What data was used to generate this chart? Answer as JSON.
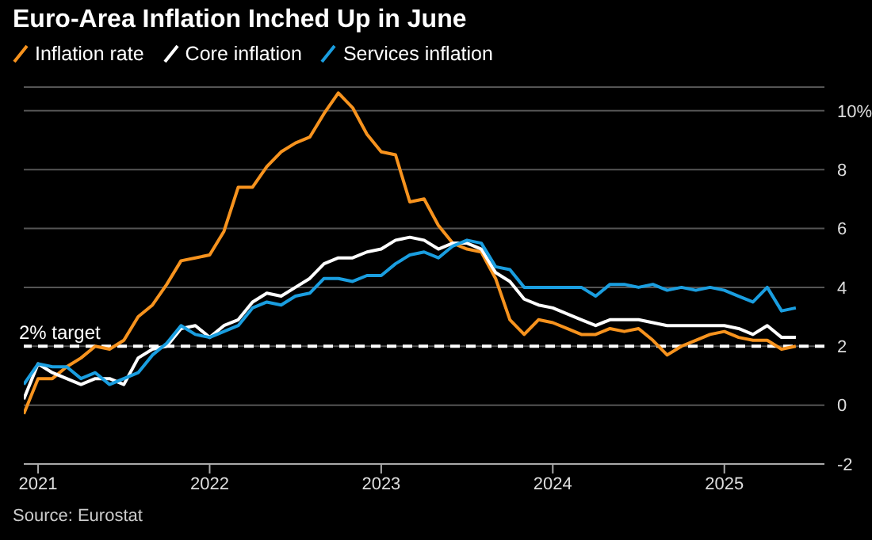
{
  "chart_data": {
    "type": "line",
    "title": "Euro-Area Inflation Inched Up in June",
    "x": [
      "2020-12",
      "2021-01",
      "2021-02",
      "2021-03",
      "2021-04",
      "2021-05",
      "2021-06",
      "2021-07",
      "2021-08",
      "2021-09",
      "2021-10",
      "2021-11",
      "2021-12",
      "2022-01",
      "2022-02",
      "2022-03",
      "2022-04",
      "2022-05",
      "2022-06",
      "2022-07",
      "2022-08",
      "2022-09",
      "2022-10",
      "2022-11",
      "2022-12",
      "2023-01",
      "2023-02",
      "2023-03",
      "2023-04",
      "2023-05",
      "2023-06",
      "2023-07",
      "2023-08",
      "2023-09",
      "2023-10",
      "2023-11",
      "2023-12",
      "2024-01",
      "2024-02",
      "2024-03",
      "2024-04",
      "2024-05",
      "2024-06",
      "2024-07",
      "2024-08",
      "2024-09",
      "2024-10",
      "2024-11",
      "2024-12",
      "2025-01",
      "2025-02",
      "2025-03",
      "2025-04",
      "2025-05",
      "2025-06"
    ],
    "series": [
      {
        "name": "Inflation rate",
        "color": "#f7931e",
        "values": [
          -0.3,
          0.9,
          0.9,
          1.3,
          1.6,
          2.0,
          1.9,
          2.2,
          3.0,
          3.4,
          4.1,
          4.9,
          5.0,
          5.1,
          5.9,
          7.4,
          7.4,
          8.1,
          8.6,
          8.9,
          9.1,
          9.9,
          10.6,
          10.1,
          9.2,
          8.6,
          8.5,
          6.9,
          7.0,
          6.1,
          5.5,
          5.3,
          5.2,
          4.3,
          2.9,
          2.4,
          2.9,
          2.8,
          2.6,
          2.4,
          2.4,
          2.6,
          2.5,
          2.6,
          2.2,
          1.7,
          2.0,
          2.2,
          2.4,
          2.5,
          2.3,
          2.2,
          2.2,
          1.9,
          2.0
        ]
      },
      {
        "name": "Core inflation",
        "color": "#ffffff",
        "values": [
          0.2,
          1.4,
          1.1,
          0.9,
          0.7,
          0.9,
          0.9,
          0.7,
          1.6,
          1.9,
          2.0,
          2.6,
          2.7,
          2.3,
          2.7,
          2.9,
          3.5,
          3.8,
          3.7,
          4.0,
          4.3,
          4.8,
          5.0,
          5.0,
          5.2,
          5.3,
          5.6,
          5.7,
          5.6,
          5.3,
          5.5,
          5.5,
          5.3,
          4.5,
          4.2,
          3.6,
          3.4,
          3.3,
          3.1,
          2.9,
          2.7,
          2.9,
          2.9,
          2.9,
          2.8,
          2.7,
          2.7,
          2.7,
          2.7,
          2.7,
          2.6,
          2.4,
          2.7,
          2.3,
          2.3
        ]
      },
      {
        "name": "Services inflation",
        "color": "#1a9ee0",
        "values": [
          0.7,
          1.4,
          1.3,
          1.3,
          0.9,
          1.1,
          0.7,
          0.9,
          1.1,
          1.7,
          2.1,
          2.7,
          2.4,
          2.3,
          2.5,
          2.7,
          3.3,
          3.5,
          3.4,
          3.7,
          3.8,
          4.3,
          4.3,
          4.2,
          4.4,
          4.4,
          4.8,
          5.1,
          5.2,
          5.0,
          5.4,
          5.6,
          5.5,
          4.7,
          4.6,
          4.0,
          4.0,
          4.0,
          4.0,
          4.0,
          3.7,
          4.1,
          4.1,
          4.0,
          4.1,
          3.9,
          4.0,
          3.9,
          4.0,
          3.9,
          3.7,
          3.5,
          4.0,
          3.2,
          3.3
        ]
      }
    ],
    "xlim": [
      "2020-12",
      "2025-08"
    ],
    "xticks": [
      "2021",
      "2022",
      "2023",
      "2024",
      "2025"
    ],
    "ylim": [
      -2,
      10.8
    ],
    "yticks": [
      -2,
      0,
      2,
      4,
      6,
      8,
      {
        "value": 10,
        "label": "10%"
      }
    ],
    "grid": "y",
    "legend": "top left",
    "line_style": "solid",
    "ref_lines": [
      {
        "axis": "y",
        "value": 2,
        "label": "2% target",
        "color": "#ffffff",
        "line_style": "dashed"
      }
    ],
    "annotations": [
      "Source: Eurostat"
    ]
  }
}
